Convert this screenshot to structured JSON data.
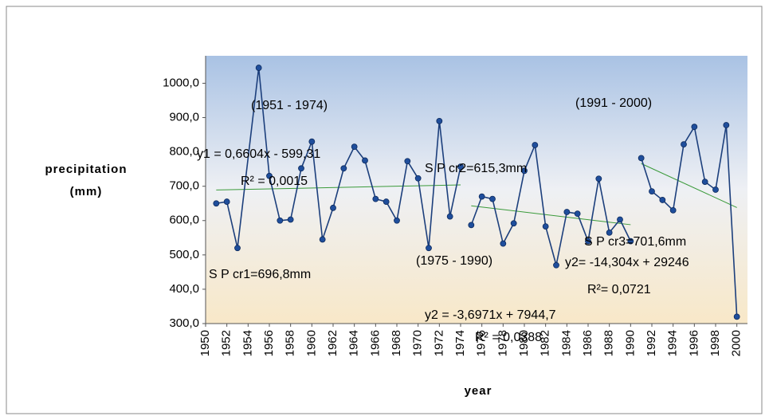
{
  "chart_data": {
    "type": "line",
    "xlabel": "year",
    "ylabel": [
      "precipitation",
      "(mm)"
    ],
    "xlim": [
      1950,
      2001
    ],
    "ylim": [
      300,
      1080
    ],
    "xticks": [
      1950,
      1952,
      1954,
      1956,
      1958,
      1960,
      1962,
      1964,
      1966,
      1968,
      1970,
      1972,
      1974,
      1976,
      1978,
      1980,
      1982,
      1984,
      1986,
      1988,
      1990,
      1992,
      1994,
      1996,
      1998,
      2000
    ],
    "yticks": [
      {
        "value": 300,
        "label": "300,0"
      },
      {
        "value": 400,
        "label": "400,0"
      },
      {
        "value": 500,
        "label": "500,0"
      },
      {
        "value": 600,
        "label": "600,0"
      },
      {
        "value": 700,
        "label": "700,0"
      },
      {
        "value": 800,
        "label": "800,0"
      },
      {
        "value": 900,
        "label": "900,0"
      },
      {
        "value": 1000,
        "label": "1000,0"
      }
    ],
    "series": [
      {
        "name": "(1951 - 1974)",
        "color": "#1c3f7c",
        "x": [
          1951,
          1952,
          1953,
          1955,
          1956,
          1957,
          1958,
          1959,
          1960,
          1961,
          1962,
          1963,
          1964,
          1965,
          1966,
          1967,
          1968,
          1969,
          1970,
          1971,
          1972,
          1973,
          1974
        ],
        "values": [
          650,
          655,
          520,
          1045,
          730,
          600,
          603,
          752,
          830,
          545,
          637,
          752,
          815,
          775,
          663,
          655,
          600,
          773,
          723,
          520,
          890,
          612,
          757
        ]
      },
      {
        "name": "(1975 - 1990)",
        "color": "#1c3f7c",
        "x": [
          1975,
          1976,
          1977,
          1978,
          1979,
          1980,
          1981,
          1982,
          1983,
          1984,
          1985,
          1986,
          1987,
          1988,
          1989,
          1990
        ],
        "values": [
          587,
          670,
          663,
          533,
          592,
          745,
          820,
          583,
          470,
          625,
          620,
          540,
          722,
          565,
          603,
          540
        ]
      },
      {
        "name": "(1991 - 2000)",
        "color": "#1c3f7c",
        "x": [
          1991,
          1992,
          1993,
          1994,
          1995,
          1996,
          1997,
          1998,
          1999,
          2000
        ],
        "values": [
          782,
          685,
          660,
          630,
          822,
          873,
          713,
          690,
          878,
          320
        ]
      }
    ],
    "trendlines": [
      {
        "color": "#3a9a3a",
        "x": [
          1951,
          1974
        ],
        "values": [
          689,
          704
        ]
      },
      {
        "color": "#3a9a3a",
        "x": [
          1975,
          1990
        ],
        "values": [
          643,
          588
        ]
      },
      {
        "color": "#3a9a3a",
        "x": [
          1991,
          2000
        ],
        "values": [
          766,
          638
        ]
      }
    ],
    "annotations": [
      "y1 = 0,6604x - 599,31",
      "R² = 0,0015",
      "S P cr1=696,8mm",
      "S P cr2=615,3mm",
      "y2 = -3,6971x + 7944,7",
      "R² = 0,0388",
      "S P cr3=701,6mm",
      "y2= -14,304x + 29246",
      "R²= 0,0721"
    ]
  }
}
